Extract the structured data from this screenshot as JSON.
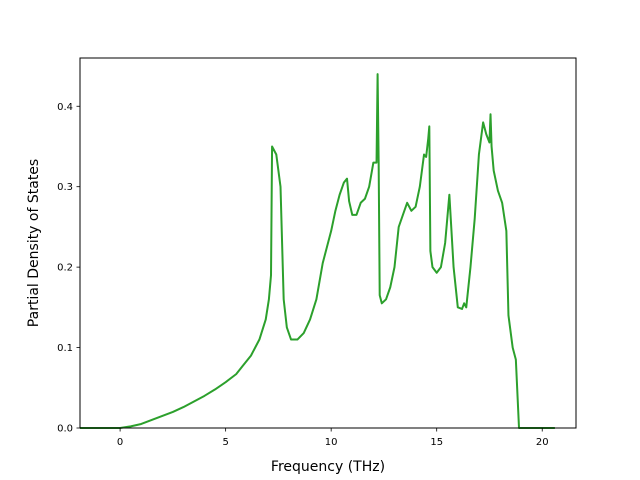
{
  "chart_data": {
    "type": "line",
    "title": "",
    "xlabel": "Frequency (THz)",
    "ylabel": "Partial Density of States",
    "xlim": [
      -1.9,
      21.6
    ],
    "ylim": [
      0.0,
      0.46
    ],
    "xticks": [
      0,
      5,
      10,
      15,
      20
    ],
    "yticks": [
      0.0,
      0.1,
      0.2,
      0.3,
      0.4
    ],
    "grid": false,
    "legend": "none",
    "series": [
      {
        "color": "#2ca02c",
        "x": [
          -1.9,
          0.0,
          0.5,
          1.0,
          1.5,
          2.0,
          2.5,
          3.0,
          3.5,
          4.0,
          4.5,
          5.0,
          5.5,
          5.8,
          6.2,
          6.6,
          6.9,
          7.05,
          7.15,
          7.2,
          7.4,
          7.6,
          7.75,
          7.9,
          8.1,
          8.4,
          8.7,
          9.0,
          9.3,
          9.6,
          9.8,
          10.0,
          10.2,
          10.4,
          10.6,
          10.75,
          10.85,
          11.0,
          11.2,
          11.4,
          11.6,
          11.8,
          12.0,
          12.15,
          12.2,
          12.25,
          12.3,
          12.4,
          12.6,
          12.8,
          13.0,
          13.2,
          13.4,
          13.6,
          13.8,
          14.0,
          14.2,
          14.4,
          14.5,
          14.6,
          14.65,
          14.7,
          14.8,
          15.0,
          15.2,
          15.4,
          15.6,
          15.8,
          16.0,
          16.2,
          16.3,
          16.4,
          16.6,
          16.8,
          17.0,
          17.2,
          17.35,
          17.5,
          17.55,
          17.6,
          17.7,
          17.9,
          18.1,
          18.3,
          18.4,
          18.6,
          18.75,
          18.9,
          19.5,
          20.6
        ],
        "y": [
          0.0,
          0.0,
          0.002,
          0.005,
          0.01,
          0.015,
          0.02,
          0.026,
          0.033,
          0.04,
          0.048,
          0.057,
          0.067,
          0.077,
          0.09,
          0.11,
          0.135,
          0.16,
          0.19,
          0.35,
          0.34,
          0.3,
          0.16,
          0.125,
          0.11,
          0.11,
          0.118,
          0.135,
          0.16,
          0.205,
          0.225,
          0.245,
          0.27,
          0.29,
          0.305,
          0.31,
          0.282,
          0.265,
          0.265,
          0.28,
          0.285,
          0.3,
          0.33,
          0.33,
          0.44,
          0.33,
          0.165,
          0.155,
          0.16,
          0.175,
          0.2,
          0.25,
          0.265,
          0.28,
          0.27,
          0.275,
          0.3,
          0.34,
          0.337,
          0.36,
          0.375,
          0.22,
          0.2,
          0.193,
          0.2,
          0.23,
          0.29,
          0.2,
          0.15,
          0.148,
          0.155,
          0.15,
          0.2,
          0.26,
          0.34,
          0.38,
          0.365,
          0.355,
          0.39,
          0.35,
          0.32,
          0.295,
          0.28,
          0.245,
          0.14,
          0.1,
          0.085,
          0.0,
          0.0,
          0.0
        ]
      }
    ]
  }
}
